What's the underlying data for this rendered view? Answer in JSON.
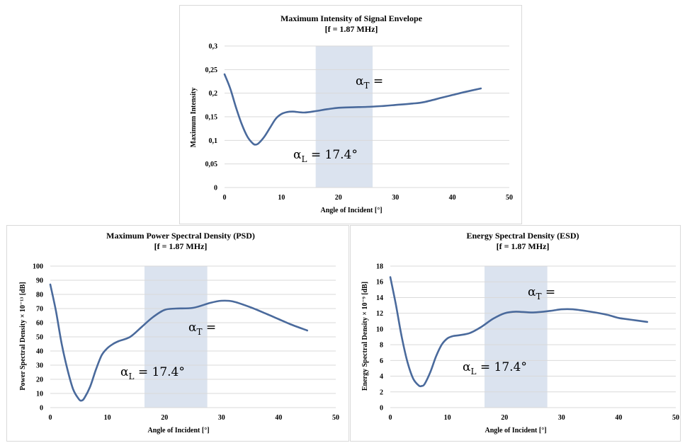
{
  "colors": {
    "line": "#4a6a9c",
    "band": "#dbe3ef",
    "grid": "#d9d9d9",
    "border": "#d9d9d9"
  },
  "chart_data": [
    {
      "id": "intensity",
      "type": "line",
      "title_line1": "Maximum Intensity of Signal Envelope",
      "title_line2": "[f = 1.87 MHz]",
      "xlabel": "Angle of Incident [°]",
      "ylabel": "Maximum Intensity",
      "xlim": [
        0,
        50
      ],
      "ylim": [
        0,
        0.3
      ],
      "x_ticks": [
        "0",
        "10",
        "20",
        "30",
        "40",
        "50"
      ],
      "y_ticks": [
        "0",
        "0,05",
        "0,1",
        "0,15",
        "0,2",
        "0,25",
        "0,3"
      ],
      "band": [
        16,
        26
      ],
      "annotation_t": "α_T =",
      "annotation_l": "α_L = 17.4°",
      "series": [
        {
          "x": [
            0,
            1,
            2,
            3,
            4,
            5,
            5.5,
            6,
            7,
            8,
            9,
            10,
            11,
            12,
            14,
            16,
            18,
            20,
            22,
            25,
            28,
            30,
            33,
            35,
            38,
            40,
            42,
            45
          ],
          "y": [
            0.24,
            0.21,
            0.17,
            0.135,
            0.108,
            0.093,
            0.091,
            0.094,
            0.108,
            0.127,
            0.146,
            0.156,
            0.16,
            0.161,
            0.159,
            0.162,
            0.166,
            0.169,
            0.17,
            0.171,
            0.173,
            0.175,
            0.178,
            0.181,
            0.19,
            0.196,
            0.202,
            0.21
          ]
        }
      ]
    },
    {
      "id": "psd",
      "type": "line",
      "title_line1": "Maximum Power Spectral Density (PSD)",
      "title_line2": "[f = 1.87 MHz]",
      "xlabel": "Angle of Incident [°]",
      "ylabel": "Power Spectral Density × 10⁻¹³ [dB]",
      "xlim": [
        0,
        50
      ],
      "ylim": [
        0,
        100
      ],
      "x_ticks": [
        "0",
        "10",
        "20",
        "30",
        "40",
        "50"
      ],
      "y_ticks": [
        "0",
        "10",
        "20",
        "30",
        "40",
        "50",
        "60",
        "70",
        "80",
        "90",
        "100"
      ],
      "band": [
        16.5,
        27.5
      ],
      "annotation_t": "α_T =",
      "annotation_l": "α_L = 17.4°",
      "series": [
        {
          "x": [
            0,
            1,
            2,
            3,
            4,
            5,
            5.5,
            6,
            7,
            8,
            9,
            10,
            11,
            12,
            14,
            16,
            18,
            20,
            22,
            25,
            28,
            30,
            32,
            35,
            38,
            40,
            42,
            45
          ],
          "y": [
            87,
            68,
            45,
            27,
            13,
            6,
            5,
            7,
            15,
            27,
            37,
            42,
            45,
            47,
            50,
            57,
            64,
            69,
            70,
            70.5,
            74,
            75.5,
            75,
            71,
            66,
            62.5,
            59,
            54.5
          ]
        }
      ]
    },
    {
      "id": "esd",
      "type": "line",
      "title_line1": "Energy Spectral Density (ESD)",
      "title_line2": "[f = 1.87 MHz]",
      "xlabel": "Angle of Incident [°]",
      "ylabel": "Energy Spectral Density × 10⁻⁹ [dB]",
      "xlim": [
        0,
        50
      ],
      "ylim": [
        0,
        18
      ],
      "x_ticks": [
        "0",
        "10",
        "20",
        "30",
        "40",
        "50"
      ],
      "y_ticks": [
        "0",
        "2",
        "4",
        "6",
        "8",
        "10",
        "12",
        "14",
        "16",
        "18"
      ],
      "band": [
        16.5,
        27.5
      ],
      "annotation_t": "α_T =",
      "annotation_l": "α_L = 17.4°",
      "series": [
        {
          "x": [
            0,
            1,
            2,
            3,
            4,
            5,
            5.5,
            6,
            7,
            8,
            9,
            10,
            11,
            12,
            14,
            16,
            18,
            20,
            22,
            25,
            28,
            30,
            32,
            35,
            38,
            40,
            42,
            45
          ],
          "y": [
            16.6,
            13,
            9,
            5.8,
            3.7,
            2.8,
            2.75,
            3,
            4.5,
            6.5,
            8,
            8.8,
            9.1,
            9.2,
            9.5,
            10.3,
            11.3,
            12,
            12.2,
            12.1,
            12.3,
            12.5,
            12.5,
            12.2,
            11.8,
            11.4,
            11.2,
            10.9
          ]
        }
      ]
    }
  ]
}
